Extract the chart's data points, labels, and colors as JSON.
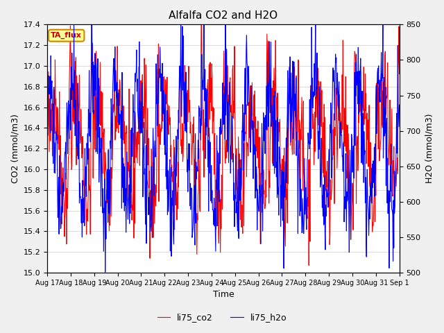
{
  "title": "Alfalfa CO2 and H2O",
  "xlabel": "Time",
  "ylabel_left": "CO2 (mmol/m3)",
  "ylabel_right": "H2O (mmol/m3)",
  "ylim_left": [
    15.0,
    17.4
  ],
  "ylim_right": [
    500,
    850
  ],
  "legend_labels": [
    "li75_co2",
    "li75_h2o"
  ],
  "legend_colors": [
    "red",
    "blue"
  ],
  "annotation_text": "TA_flux",
  "annotation_color": "#cc0000",
  "annotation_bg": "#ffff99",
  "annotation_border": "#cc8800",
  "xticklabels": [
    "Aug 17",
    "Aug 18",
    "Aug 19",
    "Aug 20",
    "Aug 21",
    "Aug 22",
    "Aug 23",
    "Aug 24",
    "Aug 25",
    "Aug 26",
    "Aug 27",
    "Aug 28",
    "Aug 29",
    "Aug 30",
    "Aug 31",
    "Sep 1"
  ],
  "background_color": "#f0f0f0",
  "plot_bg_color": "#ffffff",
  "grid_color": "#cccccc",
  "n_points": 900
}
